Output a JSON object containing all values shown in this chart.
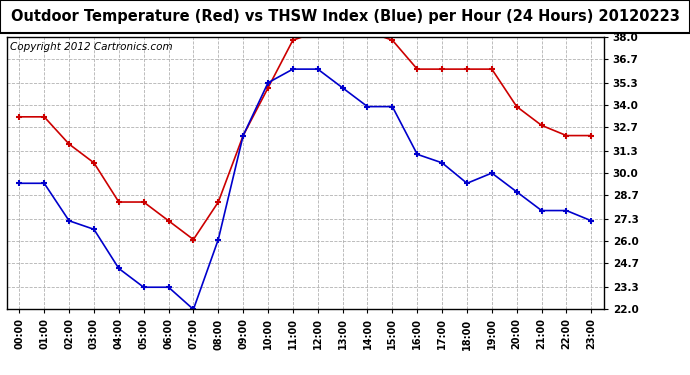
{
  "title": "Outdoor Temperature (Red) vs THSW Index (Blue) per Hour (24 Hours) 20120223",
  "copyright": "Copyright 2012 Cartronics.com",
  "x_labels": [
    "00:00",
    "01:00",
    "02:00",
    "03:00",
    "04:00",
    "05:00",
    "06:00",
    "07:00",
    "08:00",
    "09:00",
    "10:00",
    "11:00",
    "12:00",
    "13:00",
    "14:00",
    "15:00",
    "16:00",
    "17:00",
    "18:00",
    "19:00",
    "20:00",
    "21:00",
    "22:00",
    "23:00"
  ],
  "red_data": [
    33.3,
    33.3,
    31.7,
    30.6,
    28.3,
    28.3,
    27.2,
    26.1,
    28.3,
    32.2,
    35.0,
    37.8,
    38.3,
    38.3,
    38.3,
    37.8,
    36.1,
    36.1,
    36.1,
    36.1,
    33.9,
    32.8,
    32.2,
    32.2
  ],
  "blue_data": [
    29.4,
    29.4,
    27.2,
    26.7,
    24.4,
    23.3,
    23.3,
    22.0,
    26.1,
    32.2,
    35.3,
    36.1,
    36.1,
    35.0,
    33.9,
    33.9,
    31.1,
    30.6,
    29.4,
    30.0,
    28.9,
    27.8,
    27.8,
    27.2
  ],
  "ylim_min": 22.0,
  "ylim_max": 38.0,
  "yticks": [
    22.0,
    23.3,
    24.7,
    26.0,
    27.3,
    28.7,
    30.0,
    31.3,
    32.7,
    34.0,
    35.3,
    36.7,
    38.0
  ],
  "red_color": "#cc0000",
  "blue_color": "#0000cc",
  "bg_color": "#ffffff",
  "grid_color": "#aaaaaa",
  "title_fontsize": 10.5,
  "copyright_fontsize": 7.5
}
